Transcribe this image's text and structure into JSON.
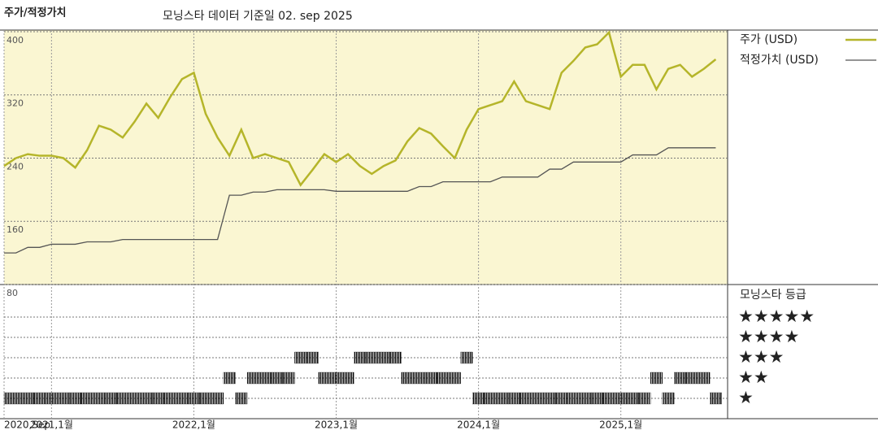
{
  "chart_data": [
    {
      "type": "line",
      "title": "주가/적정가치",
      "subtitle": "모닝스타 데이터 기준일 02. sep 2025",
      "x": [
        "2020-09",
        "2020-10",
        "2020-11",
        "2020-12",
        "2021-01",
        "2021-02",
        "2021-03",
        "2021-04",
        "2021-05",
        "2021-06",
        "2021-07",
        "2021-08",
        "2021-09",
        "2021-10",
        "2021-11",
        "2021-12",
        "2022-01",
        "2022-02",
        "2022-03",
        "2022-04",
        "2022-05",
        "2022-06",
        "2022-07",
        "2022-08",
        "2022-09",
        "2022-10",
        "2022-11",
        "2022-12",
        "2023-01",
        "2023-02",
        "2023-03",
        "2023-04",
        "2023-05",
        "2023-06",
        "2023-07",
        "2023-08",
        "2023-09",
        "2023-10",
        "2023-11",
        "2023-12",
        "2024-01",
        "2024-02",
        "2024-03",
        "2024-04",
        "2024-05",
        "2024-06",
        "2024-07",
        "2024-08",
        "2024-09",
        "2024-10",
        "2024-11",
        "2024-12",
        "2025-01",
        "2025-02",
        "2025-03",
        "2025-04",
        "2025-05",
        "2025-06",
        "2025-07",
        "2025-08",
        "2025-09"
      ],
      "series": [
        {
          "name": "주가 (USD)",
          "color": "#b5b52a",
          "values": [
            230,
            240,
            245,
            243,
            243,
            240,
            228,
            250,
            281,
            276,
            266,
            286,
            309,
            291,
            317,
            340,
            348,
            296,
            266,
            243,
            276,
            240,
            245,
            240,
            235,
            206,
            225,
            245,
            235,
            245,
            230,
            220,
            230,
            237,
            261,
            278,
            271,
            255,
            240,
            276,
            302,
            307,
            312,
            337,
            312,
            307,
            302,
            348,
            363,
            380,
            384,
            399,
            343,
            358,
            358,
            327,
            353,
            358,
            343,
            353,
            365
          ]
        },
        {
          "name": "적정가치 (USD)",
          "color": "#555555",
          "values": [
            120,
            120,
            127,
            127,
            131,
            131,
            131,
            134,
            134,
            134,
            137,
            137,
            137,
            137,
            137,
            137,
            137,
            137,
            137,
            193,
            193,
            197,
            197,
            200,
            200,
            200,
            200,
            200,
            198,
            198,
            198,
            198,
            198,
            198,
            198,
            204,
            204,
            210,
            210,
            210,
            210,
            210,
            216,
            216,
            216,
            216,
            226,
            226,
            235,
            235,
            235,
            235,
            235,
            244,
            244,
            244,
            253,
            253,
            253,
            253,
            253
          ]
        }
      ],
      "xlim": [
        "2020-09",
        "2025-10"
      ],
      "xticks": [
        {
          "value": "2020-09",
          "label": "2020,Sep"
        },
        {
          "value": "2021-01",
          "label": "2021,1월"
        },
        {
          "value": "2022-01",
          "label": "2022,1월"
        },
        {
          "value": "2023-01",
          "label": "2023,1월"
        },
        {
          "value": "2024-01",
          "label": "2024,1월"
        },
        {
          "value": "2025-01",
          "label": "2025,1월"
        }
      ],
      "ylim": [
        80,
        402
      ],
      "yticks": [
        80,
        160,
        240,
        320,
        400
      ],
      "grid": true,
      "background": "#faf6d2"
    },
    {
      "type": "rating",
      "title": "모닝스타 등급",
      "values": [
        1,
        1,
        1,
        1,
        1,
        1,
        1,
        1,
        1,
        1,
        1,
        1,
        1,
        1,
        1,
        1,
        1,
        1,
        1,
        2,
        1,
        2,
        2,
        2,
        2,
        3,
        3,
        2,
        2,
        2,
        3,
        3,
        3,
        3,
        2,
        2,
        2,
        2,
        2,
        3,
        1,
        1,
        1,
        1,
        1,
        1,
        1,
        1,
        1,
        1,
        1,
        1,
        1,
        1,
        1,
        2,
        1,
        2,
        2,
        2,
        1
      ],
      "ylim": [
        0,
        6.6
      ],
      "yticks": [
        {
          "value": 5,
          "label": "★★★★★"
        },
        {
          "value": 4,
          "label": "★★★★"
        },
        {
          "value": 3,
          "label": "★★★"
        },
        {
          "value": 2,
          "label": "★★"
        },
        {
          "value": 1,
          "label": "★"
        }
      ],
      "color": "#000000"
    }
  ]
}
